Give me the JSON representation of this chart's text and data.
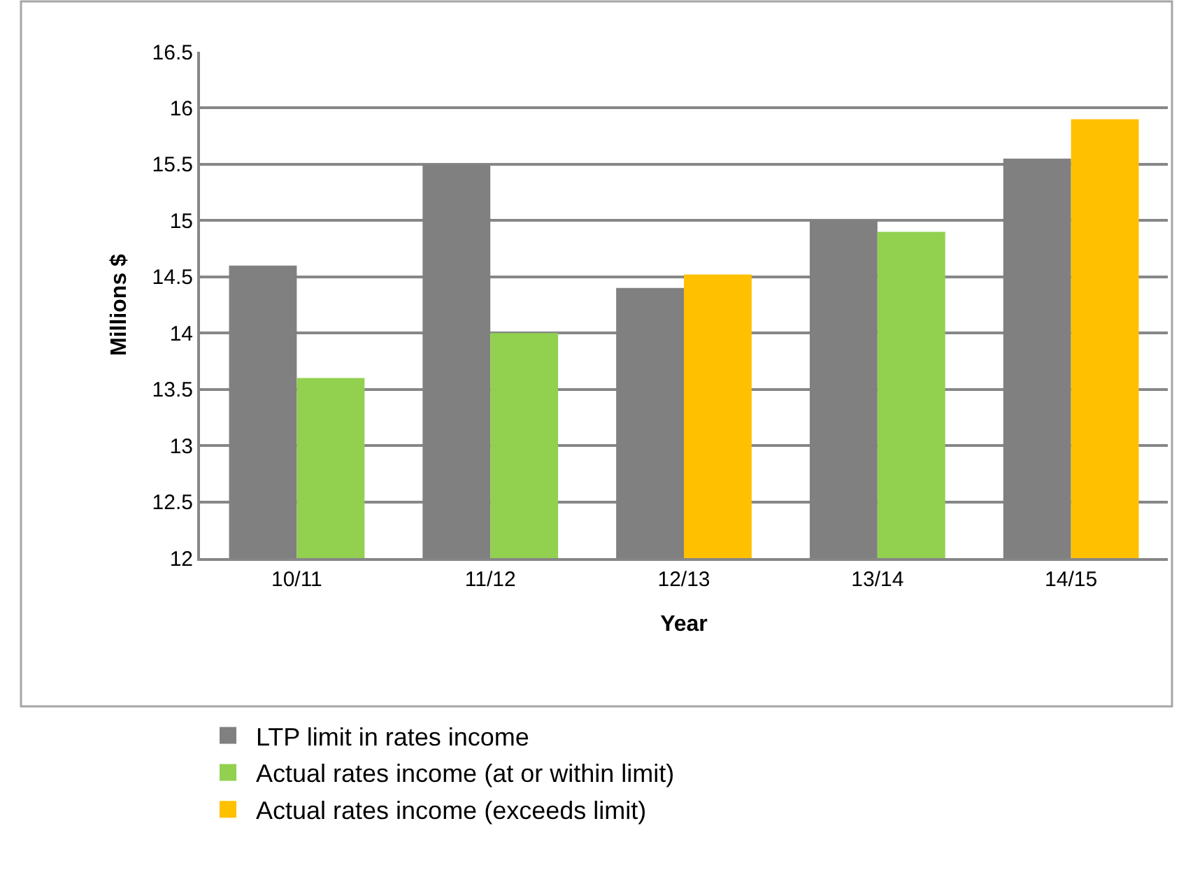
{
  "chart_data": {
    "type": "bar",
    "xlabel": "Year",
    "ylabel": "Millions $",
    "categories": [
      "10/11",
      "11/12",
      "12/13",
      "13/14",
      "14/15"
    ],
    "series": [
      {
        "name": "LTP limit in rates income",
        "color": "#808080",
        "values": [
          14.6,
          15.5,
          14.4,
          15.0,
          15.55
        ]
      },
      {
        "name": "Actual rates income (at or within limit)",
        "color": "#92d050",
        "values": [
          13.6,
          14.0,
          null,
          14.9,
          null
        ]
      },
      {
        "name": "Actual rates income (exceeds limit)",
        "color": "#ffc000",
        "values": [
          null,
          null,
          14.52,
          null,
          15.9
        ]
      }
    ],
    "ylim": [
      12,
      16.5
    ],
    "yticks": [
      12,
      12.5,
      13,
      13.5,
      14,
      14.5,
      15,
      15.5,
      16,
      16.5
    ],
    "grid": "y",
    "legend": "bottom"
  }
}
